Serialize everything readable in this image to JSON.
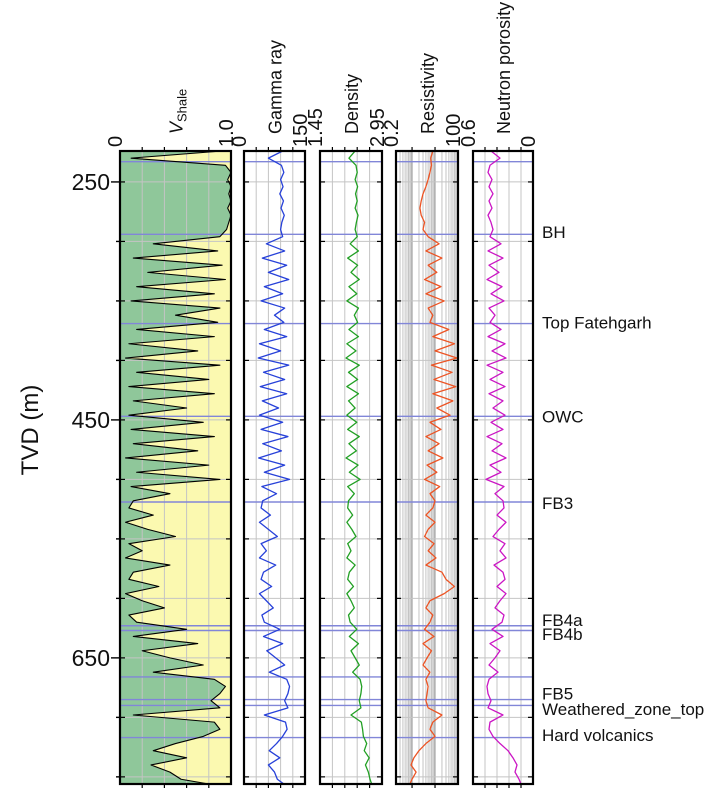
{
  "chart_data": {
    "type": "line",
    "subtype": "well-log-composite",
    "depth_axis": {
      "label": "TVD (m)",
      "unit": "m",
      "start": 224,
      "end": 756,
      "tick_labels": [
        250,
        450,
        650
      ],
      "grid_interval_m": 50
    },
    "sampling": {
      "depth_start": 224,
      "depth_step": 6,
      "n": 90
    },
    "grid_color": "#c4c4c4",
    "decade_grid_color": "#9a9a9a",
    "top_line_color": "#8186d8",
    "tracks": [
      {
        "id": "vshale",
        "title_main": "V",
        "title_sub": "Shale",
        "min_label": "0",
        "max_label": "1.0",
        "min": 0,
        "max": 1,
        "scale": "linear",
        "divisions": 5,
        "curve_color": "#000000",
        "fill_left_color": "#8fc79a",
        "fill_right_color": "#fbf9b0",
        "values": [
          0.92,
          0.1,
          0.95,
          1.0,
          0.97,
          1.0,
          0.98,
          1.0,
          0.97,
          1.0,
          0.98,
          0.96,
          0.9,
          0.3,
          0.88,
          0.12,
          0.92,
          0.25,
          0.95,
          0.15,
          0.85,
          0.1,
          0.9,
          0.5,
          0.88,
          0.15,
          0.85,
          0.08,
          0.7,
          0.05,
          0.9,
          0.15,
          0.8,
          0.08,
          0.85,
          0.12,
          0.6,
          0.08,
          0.75,
          0.1,
          0.85,
          0.12,
          0.7,
          0.05,
          0.8,
          0.15,
          0.9,
          0.1,
          0.45,
          0.12,
          0.08,
          0.3,
          0.05,
          0.25,
          0.5,
          0.08,
          0.2,
          0.05,
          0.45,
          0.12,
          0.08,
          0.35,
          0.05,
          0.2,
          0.4,
          0.08,
          0.15,
          0.6,
          0.12,
          0.7,
          0.2,
          0.45,
          0.75,
          0.3,
          0.85,
          0.95,
          0.9,
          0.82,
          0.9,
          0.12,
          0.85,
          0.9,
          0.75,
          0.5,
          0.3,
          0.6,
          0.28,
          0.45,
          0.55,
          0.8
        ]
      },
      {
        "id": "gamma-ray",
        "title_main": "Gamma ray",
        "min_label": "0",
        "max_label": "150",
        "min": 0,
        "max": 150,
        "scale": "linear",
        "divisions": 5,
        "curve_color": "#2741d9",
        "values": [
          95,
          60,
          92,
          98,
          90,
          96,
          88,
          97,
          91,
          99,
          93,
          90,
          95,
          55,
          100,
          45,
          105,
          60,
          110,
          50,
          95,
          42,
          100,
          75,
          98,
          50,
          105,
          38,
          90,
          35,
          110,
          48,
          100,
          40,
          105,
          45,
          85,
          38,
          95,
          42,
          108,
          46,
          92,
          36,
          100,
          50,
          112,
          44,
          80,
          46,
          42,
          65,
          38,
          60,
          82,
          42,
          55,
          38,
          78,
          48,
          42,
          68,
          38,
          55,
          72,
          44,
          50,
          88,
          48,
          95,
          56,
          78,
          100,
          62,
          105,
          112,
          108,
          100,
          108,
          50,
          102,
          106,
          95,
          80,
          62,
          88,
          60,
          75,
          82,
          98
        ]
      },
      {
        "id": "density",
        "title_main": "Density",
        "min_label": "1.45",
        "max_label": "2.95",
        "min": 1.45,
        "max": 2.95,
        "scale": "linear",
        "divisions": 5,
        "curve_color": "#22a024",
        "values": [
          2.3,
          2.15,
          2.32,
          2.35,
          2.3,
          2.36,
          2.31,
          2.35,
          2.3,
          2.37,
          2.33,
          2.3,
          2.35,
          2.18,
          2.38,
          2.12,
          2.36,
          2.2,
          2.4,
          2.15,
          2.34,
          2.1,
          2.38,
          2.28,
          2.36,
          2.15,
          2.38,
          2.1,
          2.32,
          2.08,
          2.4,
          2.14,
          2.36,
          2.1,
          2.38,
          2.14,
          2.3,
          2.1,
          2.34,
          2.12,
          2.4,
          2.15,
          2.33,
          2.08,
          2.37,
          2.16,
          2.42,
          2.12,
          2.28,
          2.14,
          2.12,
          2.24,
          2.1,
          2.22,
          2.32,
          2.12,
          2.2,
          2.1,
          2.3,
          2.16,
          2.12,
          2.26,
          2.1,
          2.2,
          2.28,
          2.14,
          2.18,
          2.34,
          2.16,
          2.38,
          2.2,
          2.3,
          2.4,
          2.24,
          2.42,
          2.46,
          2.44,
          2.4,
          2.44,
          2.2,
          2.45,
          2.48,
          2.5,
          2.58,
          2.52,
          2.64,
          2.55,
          2.62,
          2.66,
          2.7
        ]
      },
      {
        "id": "resistivity",
        "title_main": "Resistivity",
        "min_label": "0.2",
        "max_label": "100",
        "min": 0.2,
        "max": 100,
        "scale": "log",
        "curve_color": "#ed5424",
        "values": [
          8,
          6.5,
          7,
          6,
          5,
          4,
          3,
          2.5,
          2.2,
          2.5,
          3.5,
          3,
          5,
          15,
          4,
          20,
          5,
          12,
          3.5,
          18,
          4,
          25,
          5,
          8,
          6,
          40,
          8,
          70,
          10,
          90,
          7,
          55,
          9,
          80,
          8,
          60,
          12,
          45,
          6,
          18,
          4,
          15,
          5,
          22,
          4.5,
          12,
          3.5,
          16,
          6,
          10,
          8,
          4,
          10,
          5,
          3.5,
          9,
          5,
          11,
          4,
          20,
          30,
          70,
          25,
          6,
          4,
          8,
          6,
          3.5,
          9,
          3,
          7,
          4.5,
          3,
          6,
          4,
          5,
          4.5,
          4,
          5,
          20,
          8,
          6,
          10,
          4,
          2,
          1.2,
          0.9,
          1.5,
          1.0,
          0.8
        ]
      },
      {
        "id": "neutron-porosity",
        "title_main": "Neutron porosity",
        "min_label": "0.6",
        "max_label": "0",
        "min": 0.6,
        "max": 0,
        "scale": "linear",
        "divisions": 5,
        "curve_color": "#cb16c4",
        "values": [
          0.42,
          0.33,
          0.43,
          0.45,
          0.41,
          0.44,
          0.4,
          0.44,
          0.41,
          0.45,
          0.42,
          0.4,
          0.43,
          0.32,
          0.45,
          0.3,
          0.44,
          0.34,
          0.46,
          0.31,
          0.42,
          0.29,
          0.44,
          0.38,
          0.43,
          0.32,
          0.45,
          0.28,
          0.41,
          0.27,
          0.46,
          0.3,
          0.43,
          0.28,
          0.44,
          0.3,
          0.4,
          0.28,
          0.42,
          0.3,
          0.46,
          0.31,
          0.41,
          0.27,
          0.43,
          0.32,
          0.47,
          0.29,
          0.38,
          0.3,
          0.29,
          0.36,
          0.27,
          0.34,
          0.4,
          0.28,
          0.33,
          0.27,
          0.39,
          0.3,
          0.28,
          0.36,
          0.27,
          0.33,
          0.38,
          0.29,
          0.31,
          0.41,
          0.3,
          0.43,
          0.33,
          0.38,
          0.44,
          0.35,
          0.44,
          0.46,
          0.45,
          0.42,
          0.45,
          0.3,
          0.43,
          0.44,
          0.4,
          0.33,
          0.25,
          0.2,
          0.16,
          0.18,
          0.14,
          0.12
        ]
      }
    ],
    "formation_tops": [
      {
        "label": "",
        "depth": 233,
        "label_depth": null
      },
      {
        "label": "BH",
        "depth": 294,
        "label_depth": 292
      },
      {
        "label": "Top Fatehgarh",
        "depth": 369,
        "label_depth": 368
      },
      {
        "label": "OWC",
        "depth": 447,
        "label_depth": 447
      },
      {
        "label": "FB3",
        "depth": 519,
        "label_depth": 520
      },
      {
        "label": "FB4a",
        "depth": 623,
        "label_depth": 618
      },
      {
        "label": "FB4b",
        "depth": 627,
        "label_depth": 630
      },
      {
        "label": "FB5",
        "depth": 666,
        "label_depth": 680
      },
      {
        "label": "Weathered_zone_top",
        "depth": 685,
        "label_depth": 693
      },
      {
        "label": "",
        "depth": 690,
        "label_depth": null
      },
      {
        "label": "Hard volcanics",
        "depth": 717,
        "label_depth": 715
      }
    ]
  }
}
